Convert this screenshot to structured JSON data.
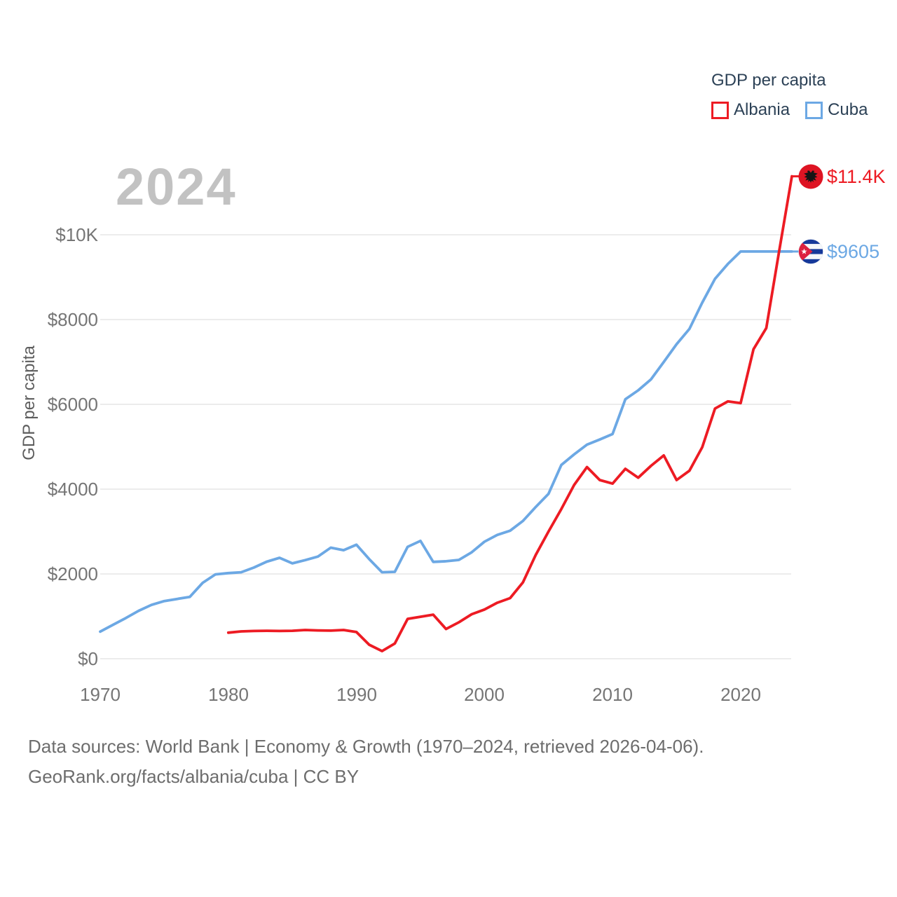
{
  "chart_data": {
    "type": "line",
    "title": "2024",
    "legend": {
      "title": "GDP per capita",
      "position": "top-right",
      "items": [
        {
          "label": "Albania",
          "color": "#ED1B23"
        },
        {
          "label": "Cuba",
          "color": "#6CA8E4"
        }
      ]
    },
    "ylabel": "GDP per capita",
    "xlabel": "",
    "grid": "horizontal",
    "xlim": [
      1970,
      2024
    ],
    "ylim": [
      0,
      11600
    ],
    "x_ticks": [
      {
        "label": "1970",
        "value": 1970
      },
      {
        "label": "1980",
        "value": 1980
      },
      {
        "label": "1990",
        "value": 1990
      },
      {
        "label": "2000",
        "value": 2000
      },
      {
        "label": "2010",
        "value": 2010
      },
      {
        "label": "2020",
        "value": 2020
      }
    ],
    "y_ticks": [
      {
        "label": "$0",
        "value": 0
      },
      {
        "label": "$2000",
        "value": 2000
      },
      {
        "label": "$4000",
        "value": 4000
      },
      {
        "label": "$6000",
        "value": 6000
      },
      {
        "label": "$8000",
        "value": 8000
      },
      {
        "label": "$10K",
        "value": 10000
      }
    ],
    "series": [
      {
        "name": "Albania",
        "color": "#ED1B23",
        "flag_icon": "albania-flag",
        "end_label": "$11.4K",
        "years": [
          1980,
          1981,
          1982,
          1983,
          1984,
          1985,
          1986,
          1987,
          1988,
          1989,
          1990,
          1991,
          1992,
          1993,
          1994,
          1995,
          1996,
          1997,
          1998,
          1999,
          2000,
          2001,
          2002,
          2003,
          2004,
          2005,
          2006,
          2007,
          2008,
          2009,
          2010,
          2011,
          2012,
          2013,
          2014,
          2015,
          2016,
          2017,
          2018,
          2019,
          2020,
          2021,
          2022,
          2023,
          2024
        ],
        "values": [
          615,
          645,
          655,
          660,
          655,
          660,
          678,
          668,
          662,
          678,
          630,
          330,
          180,
          360,
          940,
          990,
          1040,
          700,
          860,
          1050,
          1160,
          1320,
          1430,
          1800,
          2450,
          3000,
          3530,
          4100,
          4520,
          4215,
          4130,
          4480,
          4270,
          4550,
          4795,
          4215,
          4435,
          4990,
          5900,
          6070,
          6030,
          7300,
          7800,
          9600,
          11378
        ]
      },
      {
        "name": "Cuba",
        "color": "#6CA8E4",
        "flag_icon": "cuba-flag",
        "end_label": "$9605",
        "years": [
          1970,
          1971,
          1972,
          1973,
          1974,
          1975,
          1976,
          1977,
          1978,
          1979,
          1980,
          1981,
          1982,
          1983,
          1984,
          1985,
          1986,
          1987,
          1988,
          1989,
          1990,
          1991,
          1992,
          1993,
          1994,
          1995,
          1996,
          1997,
          1998,
          1999,
          2000,
          2001,
          2002,
          2003,
          2004,
          2005,
          2006,
          2007,
          2008,
          2009,
          2010,
          2011,
          2012,
          2013,
          2014,
          2015,
          2016,
          2017,
          2018,
          2019,
          2020,
          2021,
          2022,
          2023,
          2024
        ],
        "values": [
          640,
          800,
          960,
          1130,
          1270,
          1360,
          1410,
          1460,
          1790,
          1990,
          2020,
          2040,
          2150,
          2290,
          2380,
          2250,
          2325,
          2410,
          2620,
          2560,
          2690,
          2350,
          2040,
          2050,
          2640,
          2780,
          2285,
          2300,
          2330,
          2510,
          2760,
          2920,
          3020,
          3250,
          3580,
          3890,
          4570,
          4820,
          5050,
          5170,
          5300,
          6120,
          6330,
          6590,
          7000,
          7420,
          7780,
          8400,
          8960,
          9310,
          9605,
          9605,
          9605,
          9605,
          9605
        ]
      }
    ]
  },
  "footer": {
    "line1": "Data sources: World Bank | Economy & Growth (1970–2024, retrieved 2026-04-06).",
    "line2": "GeoRank.org/facts/albania/cuba | CC BY"
  }
}
